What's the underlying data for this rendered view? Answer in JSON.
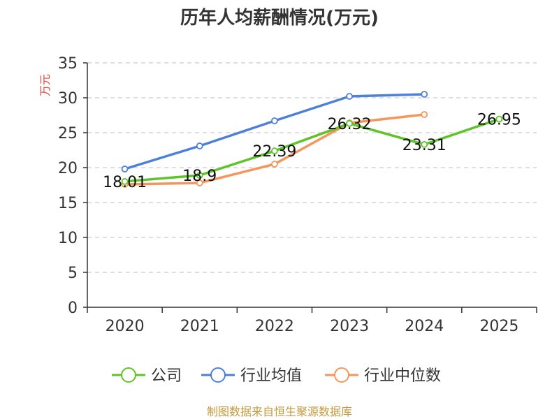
{
  "chart_data": {
    "type": "line",
    "title": "历年人均薪酬情况(万元)",
    "ylabel": "万元",
    "xlabel": "",
    "categories": [
      "2020",
      "2021",
      "2022",
      "2023",
      "2024",
      "2025"
    ],
    "ylim": [
      0,
      35
    ],
    "yticks": [
      0,
      5,
      10,
      15,
      20,
      25,
      30,
      35
    ],
    "grid": true,
    "legend_position": "bottom",
    "series": [
      {
        "name": "公司",
        "color": "#5ec42a",
        "values": [
          18.01,
          18.9,
          22.39,
          26.32,
          23.31,
          26.95
        ],
        "labels": [
          "18.01",
          "18.9",
          "22.39",
          "26.32",
          "23.31",
          "26.95"
        ]
      },
      {
        "name": "行业均值",
        "color": "#4d80d8",
        "values": [
          19.8,
          23.1,
          26.7,
          30.2,
          30.5,
          null
        ]
      },
      {
        "name": "行业中位数",
        "color": "#f5955a",
        "values": [
          17.6,
          17.8,
          20.5,
          26.4,
          27.6,
          null
        ]
      }
    ]
  },
  "source": "制图数据来自恒生聚源数据库",
  "colors": {
    "ylabel": "#e0473c",
    "source": "#c49a3c",
    "grid": "#cccccc",
    "axis": "#333333"
  }
}
